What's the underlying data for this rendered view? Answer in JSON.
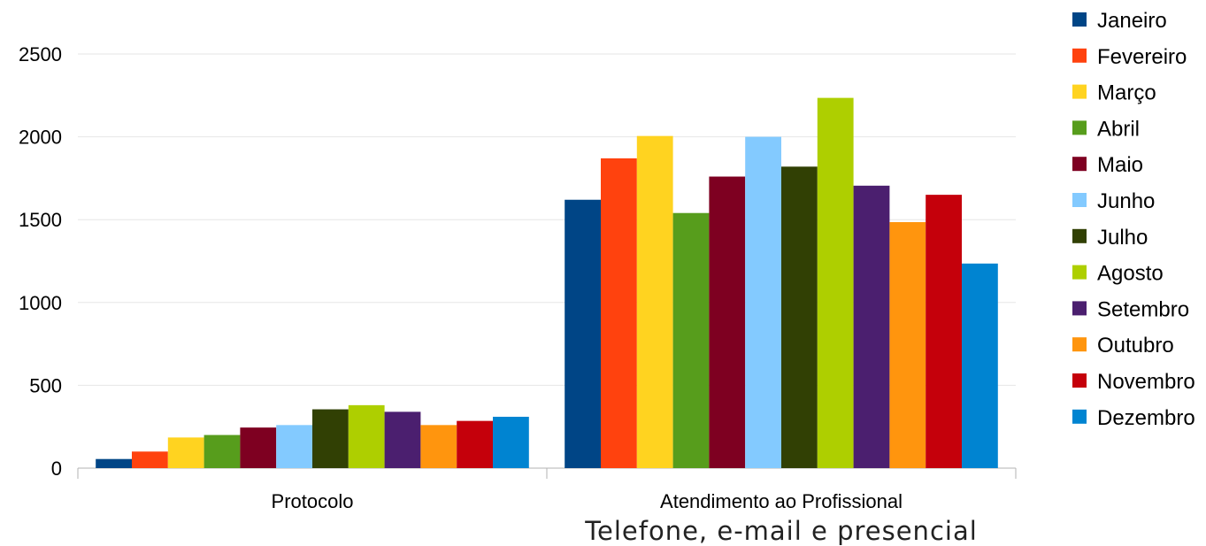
{
  "chart_data": {
    "type": "bar",
    "categories": [
      "Protocolo",
      "Atendimento ao Profissional"
    ],
    "category_sublabels": [
      "",
      "Telefone, e-mail e presencial"
    ],
    "ylim": [
      0,
      2500
    ],
    "yticks": [
      0,
      500,
      1000,
      1500,
      2000,
      2500
    ],
    "grid": true,
    "legend_position": "right",
    "series": [
      {
        "name": "Janeiro",
        "color": "#004586",
        "values": [
          55,
          1620
        ]
      },
      {
        "name": "Fevereiro",
        "color": "#ff420e",
        "values": [
          100,
          1870
        ]
      },
      {
        "name": "Março",
        "color": "#ffd320",
        "values": [
          185,
          2005
        ]
      },
      {
        "name": "Abril",
        "color": "#579d1c",
        "values": [
          200,
          1540
        ]
      },
      {
        "name": "Maio",
        "color": "#7e0021",
        "values": [
          245,
          1760
        ]
      },
      {
        "name": "Junho",
        "color": "#83caff",
        "values": [
          260,
          2000
        ]
      },
      {
        "name": "Julho",
        "color": "#314004",
        "values": [
          355,
          1820
        ]
      },
      {
        "name": "Agosto",
        "color": "#aecf00",
        "values": [
          380,
          2235
        ]
      },
      {
        "name": "Setembro",
        "color": "#4b1f6f",
        "values": [
          340,
          1705
        ]
      },
      {
        "name": "Outubro",
        "color": "#ff950e",
        "values": [
          260,
          1485
        ]
      },
      {
        "name": "Novembro",
        "color": "#c5000b",
        "values": [
          285,
          1650
        ]
      },
      {
        "name": "Dezembro",
        "color": "#0084d1",
        "values": [
          310,
          1235
        ]
      }
    ]
  }
}
